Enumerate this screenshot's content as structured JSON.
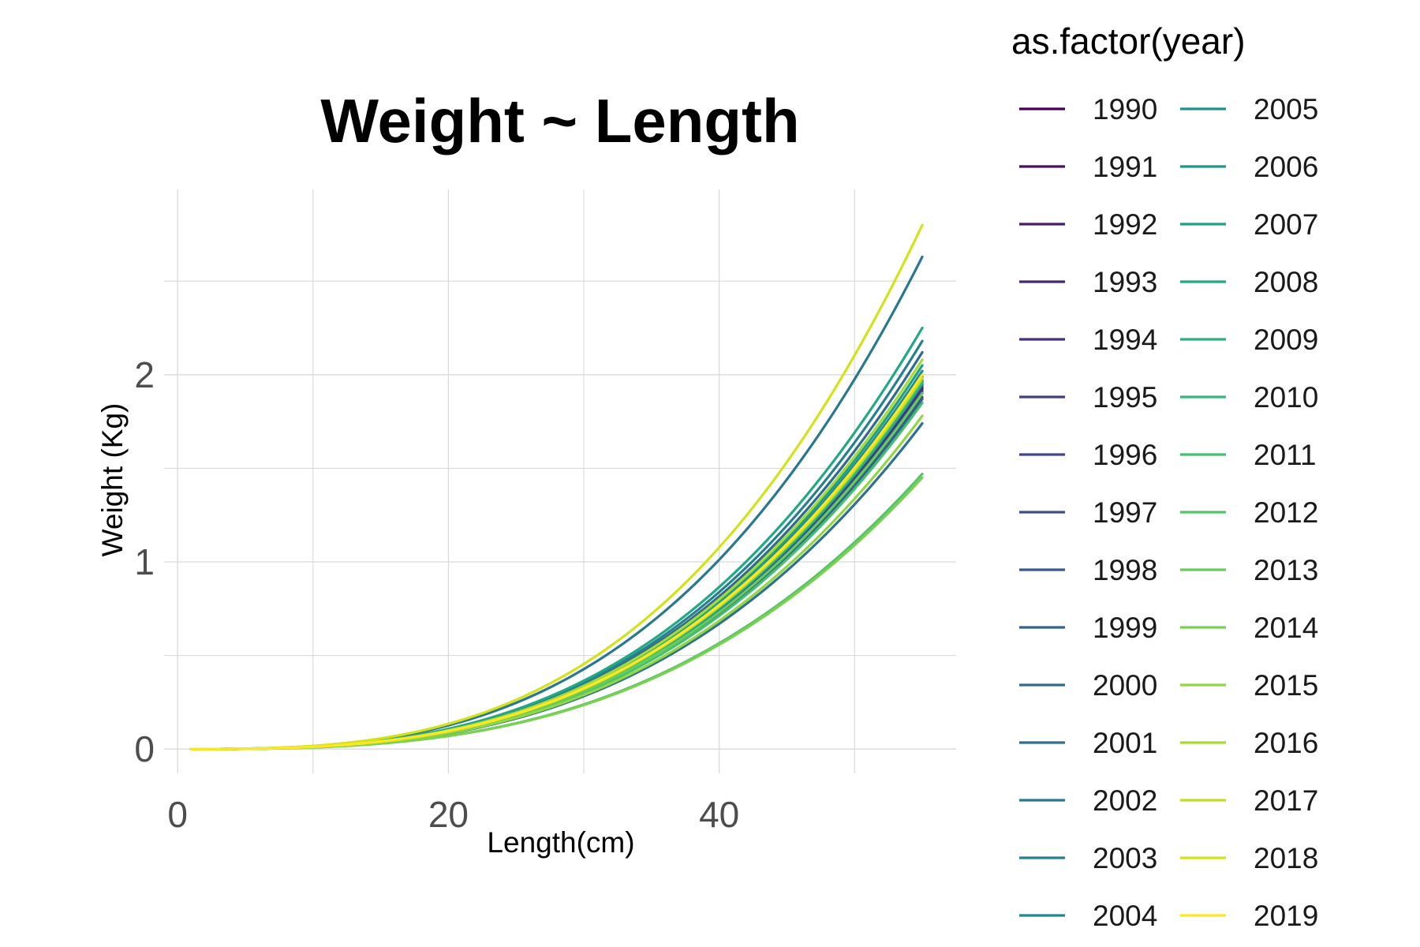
{
  "chart_data": {
    "type": "line",
    "title": "Weight ~ Length",
    "xlabel": "Length(cm)",
    "ylabel": "Weight (Kg)",
    "xlim": [
      -1,
      57.5
    ],
    "ylim": [
      -0.13,
      2.99
    ],
    "x_ticks": [
      0,
      20,
      40
    ],
    "y_ticks": [
      0,
      1,
      2
    ],
    "x_range": [
      1,
      55
    ],
    "grid": true,
    "legend": {
      "title": "as.factor(year)",
      "position": "right",
      "columns": 2
    },
    "series": [
      {
        "name": "1990",
        "color": "#440154",
        "weight_at_55": 1.93
      },
      {
        "name": "1991",
        "color": "#470E61",
        "weight_at_55": 1.95
      },
      {
        "name": "1992",
        "color": "#481B6D",
        "weight_at_55": 1.92
      },
      {
        "name": "1993",
        "color": "#472576",
        "weight_at_55": 1.96
      },
      {
        "name": "1994",
        "color": "#46307E",
        "weight_at_55": 1.9
      },
      {
        "name": "1995",
        "color": "#433D84",
        "weight_at_55": 1.94
      },
      {
        "name": "1996",
        "color": "#404688",
        "weight_at_55": 1.88
      },
      {
        "name": "1997",
        "color": "#3C4F8A",
        "weight_at_55": 1.97
      },
      {
        "name": "1998",
        "color": "#38598C",
        "weight_at_55": 1.91
      },
      {
        "name": "1999",
        "color": "#34618D",
        "weight_at_55": 1.87
      },
      {
        "name": "2000",
        "color": "#306A8E",
        "weight_at_55": 2.12
      },
      {
        "name": "2001",
        "color": "#2D718E",
        "weight_at_55": 1.74
      },
      {
        "name": "2002",
        "color": "#2A788E",
        "weight_at_55": 2.63
      },
      {
        "name": "2003",
        "color": "#27808E",
        "weight_at_55": 2.18
      },
      {
        "name": "2004",
        "color": "#24878E",
        "weight_at_55": 2.02
      },
      {
        "name": "2005",
        "color": "#21908C",
        "weight_at_55": 1.99
      },
      {
        "name": "2006",
        "color": "#1F978B",
        "weight_at_55": 1.95
      },
      {
        "name": "2007",
        "color": "#1FA088",
        "weight_at_55": 2.05
      },
      {
        "name": "2008",
        "color": "#22A884",
        "weight_at_55": 2.25
      },
      {
        "name": "2009",
        "color": "#2AB07F",
        "weight_at_55": 2.0
      },
      {
        "name": "2010",
        "color": "#35B779",
        "weight_at_55": 1.96
      },
      {
        "name": "2011",
        "color": "#44BF70",
        "weight_at_55": 1.85
      },
      {
        "name": "2012",
        "color": "#54C568",
        "weight_at_55": 1.47
      },
      {
        "name": "2013",
        "color": "#67CC5C",
        "weight_at_55": 1.9
      },
      {
        "name": "2014",
        "color": "#7AD151",
        "weight_at_55": 1.45
      },
      {
        "name": "2015",
        "color": "#90D743",
        "weight_at_55": 1.78
      },
      {
        "name": "2016",
        "color": "#A5DB36",
        "weight_at_55": 2.08
      },
      {
        "name": "2017",
        "color": "#BDDF26",
        "weight_at_55": 1.98
      },
      {
        "name": "2018",
        "color": "#D2E21B",
        "weight_at_55": 2.8
      },
      {
        "name": "2019",
        "color": "#FDE725",
        "weight_at_55": 2.0
      }
    ]
  }
}
